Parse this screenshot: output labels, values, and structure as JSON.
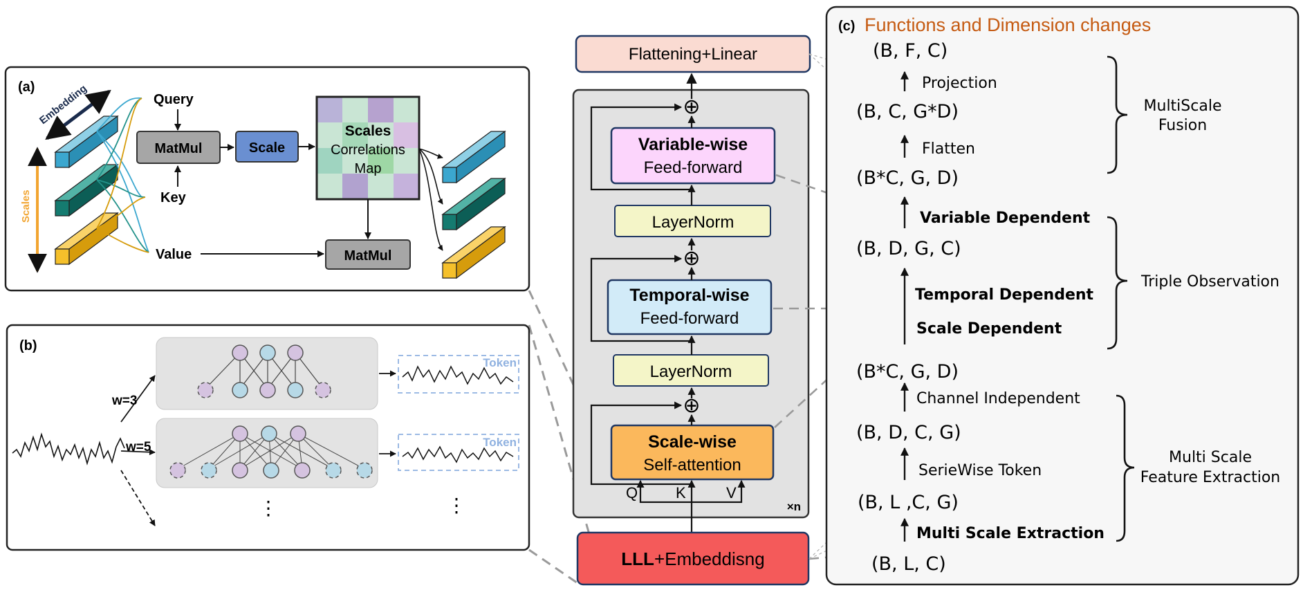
{
  "panel_a": {
    "label": "(a)",
    "embedding": "Embedding",
    "scales": "Scales",
    "query": "Query",
    "key": "Key",
    "value": "Value",
    "matmul1": "MatMul",
    "scale": "Scale",
    "map_line1": "Scales",
    "map_line2": "Correlations",
    "map_line3": "Map",
    "matmul2": "MatMul"
  },
  "panel_b": {
    "label": "(b)",
    "w3": "w=3",
    "w5": "w=5",
    "token1": "Token",
    "token2": "Token",
    "dots1": "⋮",
    "dots2": "⋮"
  },
  "center": {
    "flatten": "Flattening+Linear",
    "var_title": "Variable-wise",
    "var_sub": "Feed-forward",
    "layernorm1": "LayerNorm",
    "temp_title": "Temporal-wise",
    "temp_sub": "Feed-forward",
    "layernorm2": "LayerNorm",
    "scale_title": "Scale-wise",
    "scale_sub": "Self-attention",
    "q": "Q",
    "k": "K",
    "v": "V",
    "xn": "×n",
    "plus": "⊕",
    "embed_bold": "LLL",
    "embed_rest": "+Embeddisng"
  },
  "panel_c": {
    "label": "(c)",
    "title": "Functions and Dimension changes",
    "dims": [
      "(B, F, C)",
      "(B, C, G*D)",
      "(B*C, G, D)",
      "(B, D, G, C)",
      "(B*C, G, D)",
      "(B, D, C, G)",
      "(B, L ,C, G)",
      "(B, L, C)"
    ],
    "ops": {
      "projection": "Projection",
      "flatten": "Flatten",
      "variable": "Variable Dependent",
      "temporal": "Temporal Dependent",
      "scale": "Scale Dependent",
      "channel": "Channel Independent",
      "seriewise": "SerieWise Token",
      "multiscale": "Multi Scale Extraction"
    },
    "groups": {
      "fusion_1": "MultiScale",
      "fusion_2": "Fusion",
      "triple": "Triple Observation",
      "mse_1": "Multi Scale",
      "mse_2": "Feature Extraction"
    }
  },
  "colors": {
    "orange_title": "#c55a11",
    "flatten_fill": "#fadbd2",
    "var_fill": "#fcd5fc",
    "temp_fill": "#d2ebf8",
    "layernorm_fill": "#f4f5c8",
    "scale_fill": "#fbb85c",
    "embed_fill": "#f45a5a",
    "box_stroke": "#1f3763"
  }
}
